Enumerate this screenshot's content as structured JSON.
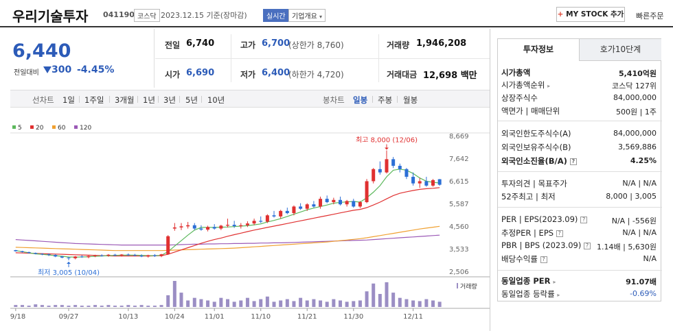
{
  "header": {
    "name": "우리기술투자",
    "code": "041190",
    "market": "코스닥",
    "date": "2023.12.15 기준(장마감)",
    "realtime": "실시간",
    "company_info": "기업개요",
    "mystock_plus": "+",
    "mystock": "MY STOCK 추가",
    "fast_order": "빠른주문"
  },
  "price": {
    "current": "6,440",
    "prev_label": "전일대비",
    "diff": "300",
    "pct": "-4.45%"
  },
  "quote": {
    "prev_label": "전일",
    "prev": "6,740",
    "high_label": "고가",
    "high": "6,700",
    "upper_limit": "(상한가 8,760)",
    "volume_label": "거래량",
    "volume": "1,946,208",
    "open_label": "시가",
    "open": "6,690",
    "low_label": "저가",
    "low": "6,400",
    "lower_limit": "(하한가 4,720)",
    "amount_label": "거래대금",
    "amount": "12,698 백만"
  },
  "range_bar": {
    "line_label": "선차트",
    "line_ranges": [
      "1일",
      "1주일",
      "3개월",
      "1년",
      "3년",
      "5년",
      "10년"
    ],
    "candle_label": "봉차트",
    "candle_ranges": [
      "일봉",
      "주봉",
      "월봉"
    ],
    "candle_active": "일봉"
  },
  "chart_data": {
    "type": "candlestick",
    "legend": [
      {
        "name": "5",
        "color": "#5cb85c"
      },
      {
        "name": "20",
        "color": "#e03030"
      },
      {
        "name": "60",
        "color": "#f0a030"
      },
      {
        "name": "120",
        "color": "#9b59b6"
      }
    ],
    "y_ticks": [
      "8,669",
      "7,642",
      "6,615",
      "5,587",
      "4,560",
      "3,533",
      "2,506"
    ],
    "ylim": [
      2506,
      8669
    ],
    "x_ticks": [
      "09/18",
      "09/27",
      "10/13",
      "10/24",
      "11/01",
      "11/10",
      "11/21",
      "11/30",
      "12/11"
    ],
    "volume_label": "거래량",
    "annot_high": "최고 8,000 (12/06)",
    "annot_low": "최저 3,005 (10/04)",
    "candles": [
      [
        3470,
        3480,
        3400,
        3420
      ],
      [
        3420,
        3440,
        3360,
        3380
      ],
      [
        3380,
        3400,
        3320,
        3340
      ],
      [
        3340,
        3360,
        3280,
        3300
      ],
      [
        3300,
        3330,
        3240,
        3280
      ],
      [
        3280,
        3320,
        3200,
        3250
      ],
      [
        3250,
        3280,
        3150,
        3180
      ],
      [
        3180,
        3210,
        3100,
        3130
      ],
      [
        3130,
        3160,
        3005,
        3100
      ],
      [
        3100,
        3200,
        3050,
        3180
      ],
      [
        3180,
        3240,
        3120,
        3150
      ],
      [
        3150,
        3220,
        3100,
        3200
      ],
      [
        3200,
        3260,
        3150,
        3230
      ],
      [
        3230,
        3280,
        3180,
        3220
      ],
      [
        3220,
        3290,
        3170,
        3260
      ],
      [
        3260,
        3300,
        3200,
        3230
      ],
      [
        3230,
        3290,
        3180,
        3270
      ],
      [
        3270,
        3320,
        3210,
        3250
      ],
      [
        3250,
        3300,
        3190,
        3220
      ],
      [
        3220,
        3280,
        3150,
        3180
      ],
      [
        3180,
        3260,
        3130,
        3240
      ],
      [
        3240,
        3290,
        3160,
        3200
      ],
      [
        3200,
        3300,
        3150,
        3280
      ],
      [
        3280,
        4150,
        3250,
        4100
      ],
      [
        4450,
        4700,
        4350,
        4500
      ],
      [
        4500,
        4700,
        4380,
        4550
      ],
      [
        4550,
        4750,
        4450,
        4600
      ],
      [
        4600,
        4700,
        4380,
        4450
      ],
      [
        4450,
        4600,
        4350,
        4400
      ],
      [
        4400,
        4580,
        4320,
        4520
      ],
      [
        4520,
        4650,
        4400,
        4450
      ],
      [
        4450,
        4620,
        4380,
        4580
      ],
      [
        4580,
        4900,
        4500,
        4620
      ],
      [
        4620,
        4800,
        4480,
        4560
      ],
      [
        4560,
        4700,
        4450,
        4600
      ],
      [
        4600,
        4780,
        4520,
        4680
      ],
      [
        4680,
        4900,
        4600,
        4800
      ],
      [
        4800,
        5000,
        4700,
        4760
      ],
      [
        4760,
        5100,
        4700,
        5050
      ],
      [
        5050,
        5250,
        4950,
        5000
      ],
      [
        5000,
        5300,
        4900,
        5250
      ],
      [
        5250,
        5400,
        5100,
        5150
      ],
      [
        5150,
        5500,
        5050,
        5450
      ],
      [
        5450,
        5600,
        5300,
        5350
      ],
      [
        5350,
        5600,
        5250,
        5550
      ],
      [
        5550,
        5700,
        5400,
        5450
      ],
      [
        5450,
        5900,
        5350,
        5800
      ],
      [
        5800,
        5950,
        5600,
        5650
      ],
      [
        5650,
        5850,
        5550,
        5750
      ],
      [
        5750,
        5900,
        5500,
        5550
      ],
      [
        5550,
        5750,
        5450,
        5700
      ],
      [
        5700,
        5800,
        5400,
        5450
      ],
      [
        5450,
        5700,
        5380,
        5650
      ],
      [
        5650,
        6700,
        5600,
        6600
      ],
      [
        6600,
        7200,
        6500,
        7150
      ],
      [
        7150,
        7500,
        6900,
        7000
      ],
      [
        7000,
        8000,
        6950,
        7600
      ],
      [
        7600,
        7700,
        7200,
        7300
      ],
      [
        7300,
        7400,
        7000,
        7150
      ],
      [
        7150,
        7200,
        6700,
        6800
      ],
      [
        6800,
        7000,
        6400,
        6500
      ],
      [
        6500,
        6750,
        6300,
        6600
      ],
      [
        6600,
        6800,
        6350,
        6400
      ],
      [
        6400,
        6700,
        6350,
        6650
      ],
      [
        6690,
        6700,
        6400,
        6440
      ]
    ],
    "ma5": [
      3450,
      3400,
      3350,
      3300,
      3280,
      3250,
      3220,
      3190,
      3160,
      3150,
      3160,
      3170,
      3190,
      3200,
      3220,
      3230,
      3240,
      3240,
      3240,
      3230,
      3220,
      3220,
      3230,
      3400,
      3650,
      3900,
      4150,
      4380,
      4500,
      4500,
      4500,
      4510,
      4520,
      4540,
      4560,
      4580,
      4620,
      4660,
      4750,
      4820,
      4900,
      5000,
      5100,
      5200,
      5300,
      5380,
      5450,
      5520,
      5600,
      5640,
      5660,
      5680,
      5650,
      5850,
      6100,
      6400,
      6800,
      7100,
      7150,
      7100,
      6950,
      6750,
      6600,
      6550,
      6520
    ],
    "ma20": [
      3350,
      3340,
      3330,
      3320,
      3310,
      3300,
      3290,
      3280,
      3270,
      3260,
      3250,
      3240,
      3230,
      3220,
      3210,
      3200,
      3200,
      3200,
      3200,
      3200,
      3200,
      3210,
      3220,
      3280,
      3380,
      3480,
      3580,
      3680,
      3780,
      3870,
      3950,
      4020,
      4100,
      4170,
      4240,
      4310,
      4380,
      4440,
      4500,
      4560,
      4620,
      4680,
      4740,
      4800,
      4860,
      4920,
      4980,
      5040,
      5100,
      5160,
      5220,
      5280,
      5320,
      5400,
      5520,
      5650,
      5800,
      5950,
      6050,
      6120,
      6180,
      6230,
      6260,
      6280,
      6310
    ],
    "ma60": [
      3600,
      3590,
      3580,
      3570,
      3560,
      3550,
      3540,
      3530,
      3520,
      3510,
      3500,
      3490,
      3480,
      3470,
      3460,
      3450,
      3450,
      3450,
      3450,
      3450,
      3450,
      3450,
      3450,
      3460,
      3470,
      3480,
      3490,
      3500,
      3510,
      3520,
      3530,
      3540,
      3550,
      3560,
      3580,
      3600,
      3620,
      3640,
      3660,
      3680,
      3700,
      3720,
      3740,
      3760,
      3780,
      3800,
      3820,
      3840,
      3870,
      3900,
      3930,
      3960,
      3990,
      4030,
      4080,
      4130,
      4180,
      4230,
      4280,
      4330,
      4380,
      4430,
      4470,
      4510,
      4550
    ],
    "ma120": [
      3950,
      3930,
      3910,
      3890,
      3870,
      3850,
      3830,
      3810,
      3790,
      3770,
      3760,
      3750,
      3740,
      3730,
      3720,
      3710,
      3700,
      3700,
      3700,
      3700,
      3700,
      3700,
      3700,
      3700,
      3710,
      3720,
      3730,
      3740,
      3740,
      3750,
      3750,
      3760,
      3760,
      3770,
      3770,
      3780,
      3780,
      3790,
      3790,
      3800,
      3800,
      3810,
      3820,
      3830,
      3840,
      3850,
      3860,
      3870,
      3880,
      3890,
      3900,
      3910,
      3920,
      3930,
      3950,
      3970,
      3990,
      4010,
      4030,
      4050,
      4070,
      4090,
      4110,
      4130,
      4150
    ],
    "volumes": [
      3,
      3,
      2,
      4,
      3,
      2,
      3,
      3,
      2,
      3,
      2,
      2,
      3,
      2,
      3,
      2,
      2,
      3,
      2,
      3,
      2,
      2,
      3,
      18,
      40,
      22,
      10,
      14,
      12,
      10,
      8,
      14,
      12,
      8,
      10,
      14,
      9,
      12,
      16,
      8,
      10,
      12,
      9,
      14,
      10,
      12,
      10,
      8,
      12,
      10,
      8,
      9,
      10,
      24,
      36,
      20,
      38,
      22,
      14,
      12,
      10,
      9,
      12,
      10,
      8
    ]
  },
  "panel": {
    "tab_invest": "투자정보",
    "tab_quote": "호가10단계",
    "market_cap_label": "시가총액",
    "market_cap": "5,410억원",
    "cap_rank_label": "시가총액순위",
    "cap_rank": "코스닥 127위",
    "listed_shares_label": "상장주식수",
    "listed_shares": "84,000,000",
    "face_label": "액면가",
    "trade_unit_label": "매매단위",
    "face_val": "500원",
    "trade_unit": "1주",
    "foreign_limit_label": "외국인한도주식수(A)",
    "foreign_limit": "84,000,000",
    "foreign_hold_label": "외국인보유주식수(B)",
    "foreign_hold": "3,569,886",
    "foreign_ratio_label": "외국인소진율(B/A)",
    "foreign_ratio": "4.25%",
    "opinion_label": "투자의견",
    "target_label": "목표주가",
    "opinion": "N/A",
    "target": "N/A",
    "w52_high_label": "52주최고",
    "w52_low_label": "최저",
    "w52_high": "8,000",
    "w52_low": "3,005",
    "per_label": "PER",
    "eps_label": "EPS(2023.09)",
    "per": "N/A",
    "eps": "-556원",
    "est_per_label": "추정PER",
    "est_eps_label": "EPS",
    "est_per": "N/A",
    "est_eps": "N/A",
    "pbr_label": "PBR",
    "bps_label": "BPS (2023.09)",
    "pbr": "1.14배",
    "bps": "5,630원",
    "div_label": "배당수익률",
    "div": "N/A",
    "sector_per_label": "동일업종 PER",
    "sector_per": "91.07배",
    "sector_rate_label": "동일업종 등락률",
    "sector_rate": "-0.69%"
  }
}
